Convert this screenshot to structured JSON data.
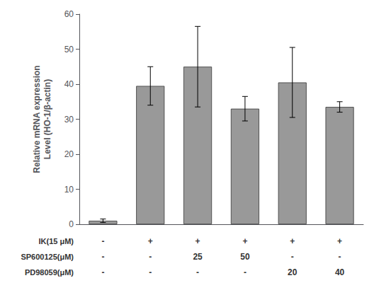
{
  "chart_data": {
    "type": "bar",
    "ylabel": "Relative mRNA expression\nLevel (HO-1/β-actin)",
    "categories": [
      null,
      null,
      null,
      null,
      null,
      null
    ],
    "values": [
      1.0,
      39.5,
      45.0,
      33.0,
      40.5,
      33.5
    ],
    "errors": [
      0.5,
      5.5,
      11.5,
      3.5,
      10.0,
      1.5
    ],
    "color": "#999999",
    "ylim": [
      0,
      60
    ],
    "yticks": [
      0,
      10,
      20,
      30,
      40,
      50,
      60
    ],
    "grid": false,
    "tick_labels": "y",
    "annotations": [
      {
        "label": "IK(15 μM)",
        "cells": [
          "-",
          "+",
          "+",
          "+",
          "+",
          "+"
        ]
      },
      {
        "label": "SP600125(μM)",
        "cells": [
          "-",
          "-",
          "25",
          "50",
          "-",
          "-"
        ]
      },
      {
        "label": "PD98059(μM)",
        "cells": [
          "-",
          "-",
          "-",
          "-",
          "20",
          "40"
        ]
      }
    ]
  }
}
